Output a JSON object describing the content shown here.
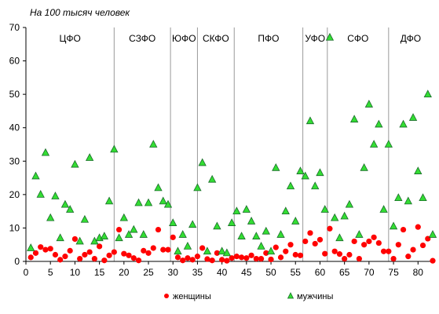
{
  "chart_data": {
    "type": "scatter",
    "units_label": "На 100 тысяч человек",
    "xlim": [
      0,
      83
    ],
    "ylim": [
      0,
      70
    ],
    "x_ticks": [
      0,
      5,
      10,
      15,
      20,
      25,
      30,
      35,
      40,
      45,
      50,
      55,
      60,
      65,
      70,
      75,
      80
    ],
    "y_ticks": [
      0,
      10,
      20,
      30,
      40,
      50,
      60,
      70
    ],
    "grid": false,
    "legend_position": "bottom",
    "regions": [
      {
        "label": "ЦФО",
        "start": 0,
        "end": 18
      },
      {
        "label": "СЗФО",
        "start": 18,
        "end": 29.5
      },
      {
        "label": "ЮФО",
        "start": 29.5,
        "end": 35
      },
      {
        "label": "СКФО",
        "start": 35,
        "end": 42.5
      },
      {
        "label": "ПФО",
        "start": 42.5,
        "end": 56.5
      },
      {
        "label": "УФО",
        "start": 56.5,
        "end": 61.5
      },
      {
        "label": "СФО",
        "start": 61.5,
        "end": 74
      },
      {
        "label": "ДФО",
        "start": 74,
        "end": 83
      }
    ],
    "series": [
      {
        "name": "женщины",
        "color": "#ff0000",
        "marker": "circle",
        "x": [
          1,
          2,
          3,
          4,
          5,
          6,
          7,
          8,
          9,
          10,
          11,
          12,
          13,
          14,
          15,
          16,
          17,
          18,
          19,
          20,
          21,
          22,
          23,
          24,
          25,
          26,
          27,
          28,
          29,
          30,
          31,
          32,
          33,
          34,
          35,
          36,
          37,
          38,
          39,
          40,
          41,
          42,
          43,
          44,
          45,
          46,
          47,
          48,
          49,
          50,
          51,
          52,
          53,
          54,
          55,
          56,
          57,
          58,
          59,
          60,
          61,
          62,
          63,
          64,
          65,
          66,
          67,
          68,
          69,
          70,
          71,
          72,
          73,
          74,
          75,
          76,
          77,
          78,
          79,
          80,
          81,
          82,
          83
        ],
        "values": [
          1.2,
          2.5,
          4.3,
          3.5,
          3.8,
          2,
          0.5,
          1.5,
          3.2,
          6.7,
          0.8,
          2,
          2.8,
          0.8,
          4.5,
          0.3,
          1.8,
          2.8,
          9.5,
          2.3,
          1.8,
          1,
          0.3,
          3.2,
          2.5,
          4,
          9.5,
          3.5,
          3.5,
          7.2,
          1.2,
          0.3,
          1,
          0.5,
          1.5,
          4,
          0.7,
          0.3,
          2.5,
          0.5,
          0.2,
          1,
          1.5,
          1.2,
          1,
          1.8,
          0.8,
          0.8,
          2.5,
          0.6,
          4.2,
          1.2,
          3,
          5,
          2,
          1.8,
          6,
          8.5,
          5.3,
          6.5,
          2.3,
          9.8,
          3,
          2.2,
          0.8,
          2,
          6,
          0.8,
          5,
          6,
          7.2,
          5.5,
          3,
          3,
          0.8,
          5,
          9.5,
          1.5,
          3.5,
          10.3,
          4.8,
          6.8,
          0.2
        ]
      },
      {
        "name": "мужчины",
        "color": "#1e9e3a",
        "marker": "triangle",
        "x": [
          1,
          2,
          3,
          4,
          5,
          6,
          7,
          8,
          9,
          10,
          11,
          12,
          13,
          14,
          15,
          16,
          17,
          18,
          19,
          20,
          21,
          22,
          23,
          24,
          25,
          26,
          27,
          28,
          29,
          30,
          31,
          32,
          33,
          34,
          35,
          36,
          37,
          38,
          39,
          40,
          41,
          42,
          43,
          44,
          45,
          46,
          47,
          48,
          49,
          50,
          51,
          52,
          53,
          54,
          55,
          56,
          57,
          58,
          59,
          60,
          61,
          62,
          63,
          64,
          65,
          66,
          67,
          68,
          69,
          70,
          71,
          72,
          73,
          74,
          75,
          76,
          77,
          78,
          79,
          80,
          81,
          82,
          83
        ],
        "values": [
          4,
          25.5,
          20,
          32.5,
          13,
          19.5,
          7,
          17,
          15.5,
          29,
          6,
          12.5,
          31,
          6,
          7,
          7.5,
          18,
          33.5,
          7,
          13,
          8,
          9.5,
          17.5,
          8,
          17.5,
          35,
          22,
          18,
          17,
          11.5,
          3,
          8,
          4.5,
          11,
          22,
          29.5,
          3,
          24.5,
          10.5,
          3,
          2.5,
          11.5,
          15,
          7.5,
          15.5,
          12,
          7.5,
          4.5,
          9,
          3,
          28,
          8,
          15,
          22.5,
          12,
          27,
          25.5,
          42,
          22.5,
          26.5,
          15.5,
          67,
          13,
          7,
          13.5,
          17,
          42.5,
          8,
          28,
          47,
          35,
          41,
          15.5,
          35,
          10.5,
          19,
          41,
          18,
          43,
          27,
          19,
          50,
          8
        ]
      }
    ]
  }
}
